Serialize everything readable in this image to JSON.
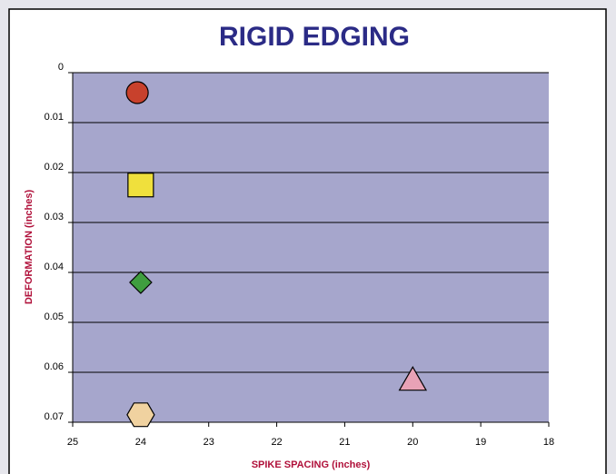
{
  "chart_data": {
    "type": "scatter",
    "title": "RIGID EDGING",
    "xlabel": "SPIKE SPACING (inches)",
    "ylabel": "DEFORMATION (inches)",
    "xlim": [
      25,
      18
    ],
    "xticks": [
      25,
      24,
      23,
      22,
      21,
      20,
      19,
      18
    ],
    "ylim": [
      0,
      0.07
    ],
    "yticks": [
      0,
      0.01,
      0.02,
      0.03,
      0.04,
      0.05,
      0.06,
      0.07
    ],
    "grid": true,
    "series": [
      {
        "x": [
          24.05
        ],
        "values": [
          0.004
        ],
        "color": "#c8412c",
        "marker": "circle"
      },
      {
        "x": [
          24
        ],
        "values": [
          0.0225
        ],
        "color": "#f0e03c",
        "marker": "square"
      },
      {
        "x": [
          24
        ],
        "values": [
          0.042
        ],
        "color": "#3f9e3f",
        "marker": "diamond"
      },
      {
        "x": [
          20
        ],
        "values": [
          0.0615
        ],
        "color": "#e8a2b6",
        "marker": "triangle"
      },
      {
        "x": [
          24
        ],
        "values": [
          0.0685
        ],
        "color": "#f0d2a0",
        "marker": "hexagon"
      }
    ]
  }
}
